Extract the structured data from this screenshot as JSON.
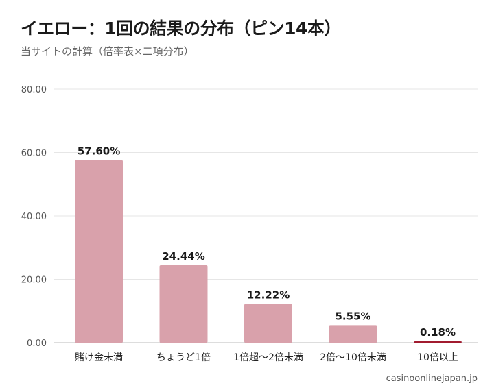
{
  "header": {
    "title": "イエロー：1回の結果の分布（ピン14本）",
    "subtitle": "当サイトの計算（倍率表×二項分布）"
  },
  "footer": {
    "source": "casinoonlinejapan.jp"
  },
  "colors": {
    "bar": "#d9a1ab",
    "bar_highlight": "#a11b2f",
    "grid": "#e6e6e6",
    "axis": "#bbbbbb"
  },
  "chart_data": {
    "type": "bar",
    "title": "イエロー：1回の結果の分布（ピン14本）",
    "subtitle": "当サイトの計算（倍率表×二項分布）",
    "categories": [
      "賭け金未満",
      "ちょうど1倍",
      "1倍超〜2倍未満",
      "2倍〜10倍未満",
      "10倍以上"
    ],
    "values": [
      57.6,
      24.44,
      12.22,
      5.55,
      0.18
    ],
    "data_labels": [
      "57.60%",
      "24.44%",
      "12.22%",
      "5.55%",
      "0.18%"
    ],
    "highlight_index": 4,
    "ylim": [
      0,
      80
    ],
    "yticks": [
      0,
      20,
      40,
      60,
      80
    ],
    "ytick_labels": [
      "0.00",
      "20.00",
      "40.00",
      "60.00",
      "80.00"
    ],
    "xlabel": "",
    "ylabel": "",
    "grid": true,
    "legend": "none"
  }
}
